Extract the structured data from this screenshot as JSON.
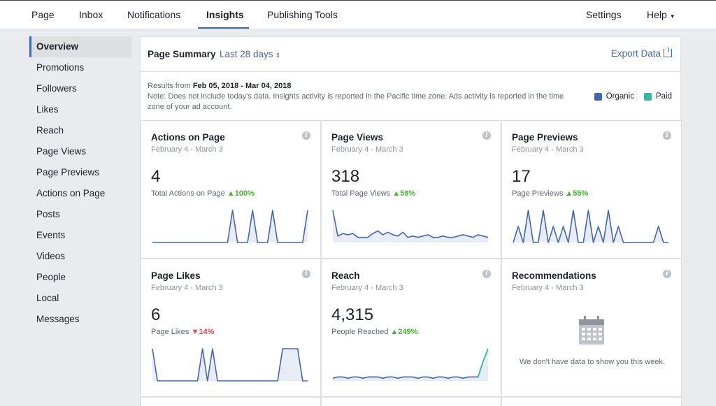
{
  "topnav": {
    "items": [
      "Page",
      "Inbox",
      "Notifications",
      "Insights",
      "Publishing Tools"
    ],
    "right": [
      "Settings",
      "Help"
    ]
  },
  "sidebar": {
    "items": [
      "Overview",
      "Promotions",
      "Followers",
      "Likes",
      "Reach",
      "Page Views",
      "Page Previews",
      "Actions on Page",
      "Posts",
      "Events",
      "Videos",
      "People",
      "Local",
      "Messages"
    ]
  },
  "summary": {
    "title": "Page Summary",
    "range": "Last 28 days",
    "export": "Export Data",
    "results_prefix": "Results from",
    "results_range": "Feb 05, 2018 - Mar 04, 2018",
    "note": "Note: Does not include today's data. Insights activity is reported in the Pacific time zone. Ads activity is reported in the time zone of your ad account.",
    "legend": [
      {
        "label": "Organic",
        "color": "#4267b2"
      },
      {
        "label": "Paid",
        "color": "#2bbf9a"
      }
    ]
  },
  "cards": [
    {
      "title": "Actions on Page",
      "sub": "February 4 - March 3",
      "value": "4",
      "metric": "Total Actions on Page",
      "trend": "100%",
      "dir": "up",
      "series": [
        0,
        0,
        0,
        0,
        0,
        0,
        0,
        0,
        0,
        0,
        0,
        0,
        0,
        0,
        0,
        0,
        1,
        0,
        0,
        0,
        1,
        0,
        0,
        0,
        1,
        0,
        0,
        0,
        0,
        0,
        0,
        1
      ]
    },
    {
      "title": "Page Views",
      "sub": "February 4 - March 3",
      "value": "318",
      "metric": "Total Page Views",
      "trend": "58%",
      "dir": "up",
      "series": [
        25,
        5,
        7,
        6,
        7,
        4,
        4,
        4,
        7,
        9,
        6,
        8,
        6,
        5,
        8,
        4,
        5,
        4,
        5,
        6,
        4,
        4,
        5,
        4,
        4,
        5,
        6,
        5,
        4,
        6,
        5,
        4
      ]
    },
    {
      "title": "Page Previews",
      "sub": "February 4 - March 3",
      "value": "17",
      "metric": "Page Previews",
      "trend": "55%",
      "dir": "up",
      "series": [
        0,
        1,
        0,
        2,
        0,
        0,
        2,
        0,
        1,
        0,
        1,
        0,
        2,
        0,
        0,
        2,
        0,
        1,
        0,
        2,
        0,
        1,
        0,
        0,
        0,
        0,
        0,
        0,
        0,
        1,
        0,
        0
      ]
    },
    {
      "title": "Page Likes",
      "sub": "February 4 - March 3",
      "value": "6",
      "metric": "Page Likes",
      "trend": "14%",
      "dir": "down",
      "series": [
        2,
        0,
        0,
        0,
        0,
        0,
        0,
        0,
        0,
        0,
        2,
        0,
        2,
        0,
        0,
        0,
        0,
        0,
        0,
        0,
        0,
        0,
        0,
        0,
        0,
        0,
        2,
        2,
        2,
        2,
        0,
        0
      ]
    },
    {
      "title": "Reach",
      "sub": "February 4 - March 3",
      "value": "4,315",
      "metric": "People Reached",
      "trend": "249%",
      "dir": "up",
      "series": [
        2,
        3,
        3,
        2,
        3,
        3,
        2,
        3,
        3,
        3,
        2,
        3,
        3,
        2,
        3,
        3,
        3,
        2,
        3,
        3,
        2,
        3,
        3,
        2,
        3,
        3,
        2,
        3,
        3,
        3,
        15,
        25
      ]
    },
    {
      "title": "Recommendations",
      "sub": "February 4 - March 3",
      "empty": "We don't have data to show you this week."
    }
  ]
}
